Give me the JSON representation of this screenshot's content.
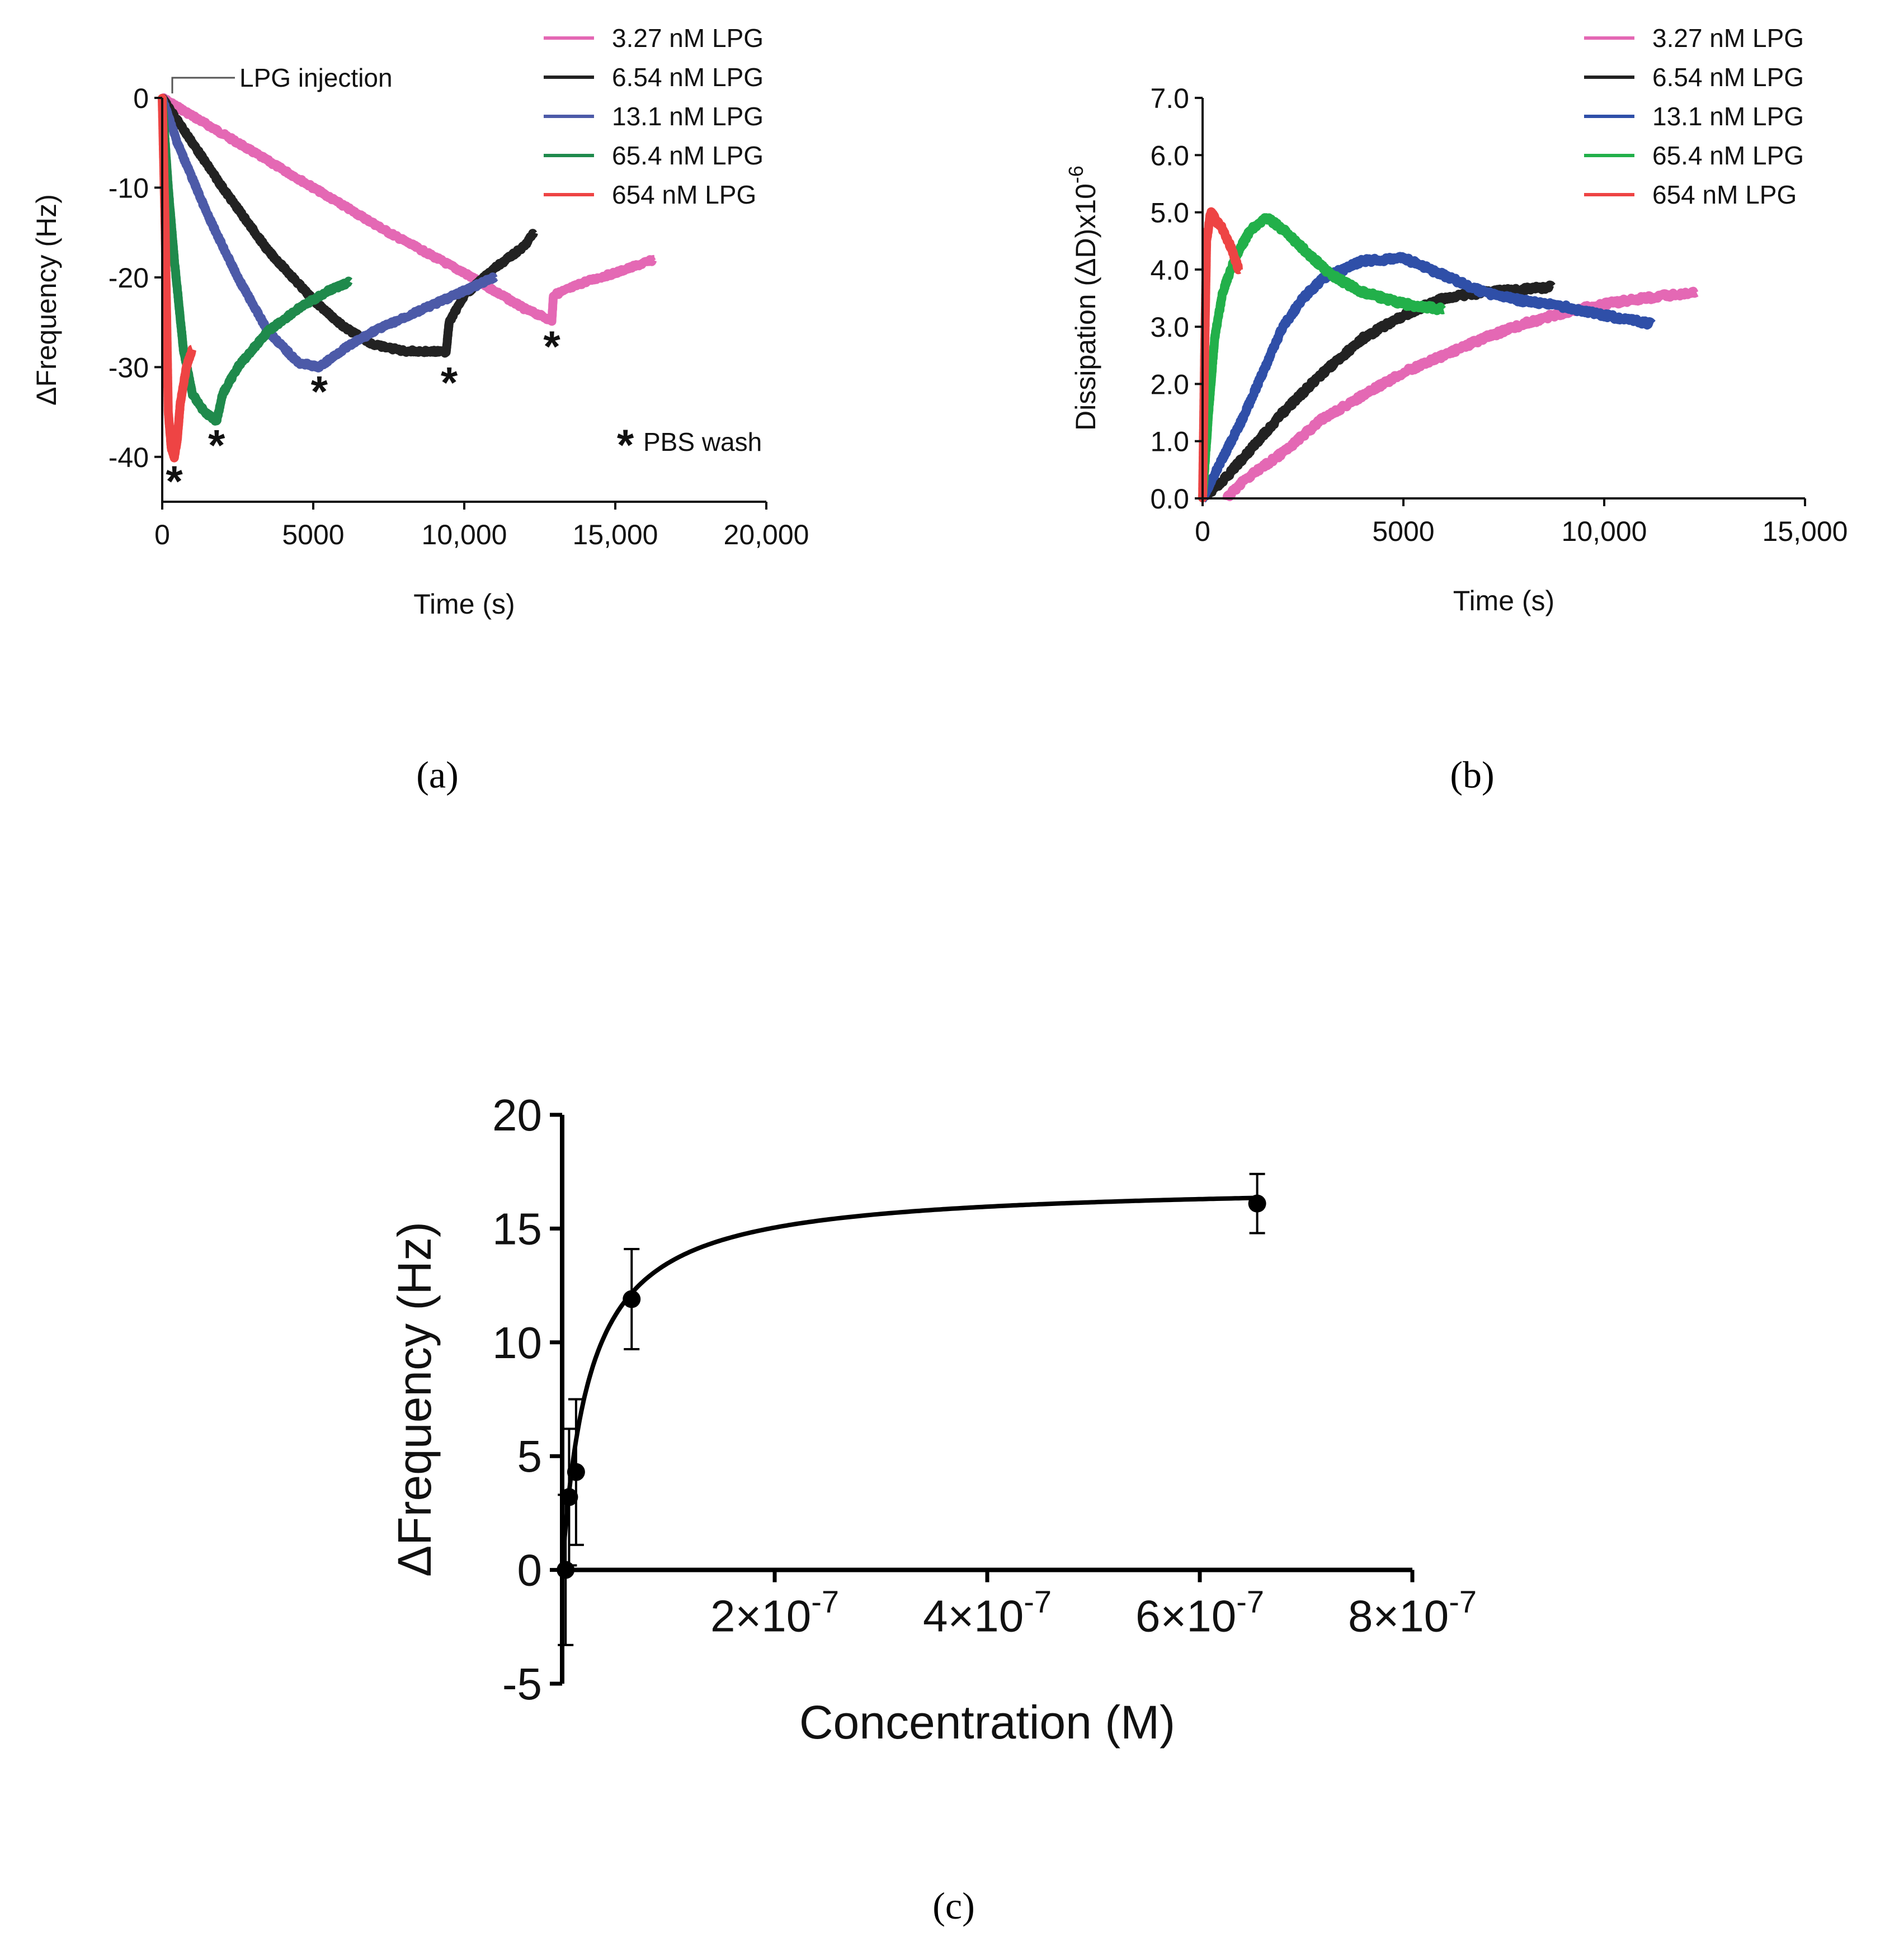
{
  "figure": {
    "captions": {
      "a": "(a)",
      "b": "(b)",
      "c": "(c)"
    }
  },
  "chart_data": [
    {
      "id": "a",
      "type": "line",
      "title": "",
      "xlabel": "Time (s)",
      "ylabel": "ΔFrequency (Hz)",
      "xlim": [
        0,
        20000
      ],
      "ylim": [
        -45,
        0
      ],
      "x_ticks": [
        0,
        5000,
        10000,
        15000,
        20000
      ],
      "x_tick_labels": [
        "0",
        "5000",
        "10,000",
        "15,000",
        "20,000"
      ],
      "y_ticks": [
        0,
        -10,
        -20,
        -30,
        -40
      ],
      "y_tick_labels": [
        "0",
        "-10",
        "-20",
        "-30",
        "-40"
      ],
      "grid": false,
      "legend_position": "top-right",
      "annotations": {
        "injection_label": "LPG injection",
        "wash_marker": "*",
        "wash_legend": "PBS wash"
      },
      "wash_points": [
        {
          "x": 400,
          "y": -42.5
        },
        {
          "x": 1800,
          "y": -38.5
        },
        {
          "x": 5200,
          "y": -32.5
        },
        {
          "x": 9500,
          "y": -31.5
        },
        {
          "x": 12900,
          "y": -27.5
        }
      ],
      "series": [
        {
          "name": "3.27 nM LPG",
          "color": "#e468b4",
          "points": [
            [
              0,
              0
            ],
            [
              1000,
              -2
            ],
            [
              2500,
              -5
            ],
            [
              5000,
              -10
            ],
            [
              7500,
              -15
            ],
            [
              10000,
              -19.5
            ],
            [
              12000,
              -23.5
            ],
            [
              12900,
              -24.8
            ],
            [
              12950,
              -22
            ],
            [
              14000,
              -20.5
            ],
            [
              15000,
              -19.5
            ],
            [
              16300,
              -18
            ]
          ]
        },
        {
          "name": "6.54 nM LPG",
          "color": "#222222",
          "points": [
            [
              0,
              0
            ],
            [
              1000,
              -5
            ],
            [
              2000,
              -10
            ],
            [
              3500,
              -17
            ],
            [
              5000,
              -22.5
            ],
            [
              6000,
              -25.5
            ],
            [
              7000,
              -27.5
            ],
            [
              8000,
              -28.2
            ],
            [
              9400,
              -28.3
            ],
            [
              9500,
              -25
            ],
            [
              10000,
              -22
            ],
            [
              11000,
              -19
            ],
            [
              12000,
              -16.5
            ],
            [
              12300,
              -15
            ]
          ]
        },
        {
          "name": "13.1 nM LPG",
          "color": "#4c5aa8",
          "points": [
            [
              0,
              0
            ],
            [
              500,
              -5
            ],
            [
              1500,
              -13
            ],
            [
              2500,
              -20
            ],
            [
              3500,
              -26
            ],
            [
              4500,
              -29.5
            ],
            [
              5200,
              -30
            ],
            [
              6000,
              -28
            ],
            [
              7000,
              -26
            ],
            [
              8000,
              -24.5
            ],
            [
              9000,
              -23
            ],
            [
              10000,
              -21.5
            ],
            [
              11000,
              -20
            ]
          ]
        },
        {
          "name": "65.4 nM LPG",
          "color": "#1f8a4c",
          "points": [
            [
              0,
              0
            ],
            [
              200,
              -10
            ],
            [
              400,
              -18
            ],
            [
              700,
              -28
            ],
            [
              1000,
              -33
            ],
            [
              1400,
              -35
            ],
            [
              1800,
              -36
            ],
            [
              2000,
              -33
            ],
            [
              2500,
              -30
            ],
            [
              3500,
              -26
            ],
            [
              4500,
              -23.5
            ],
            [
              5500,
              -21.5
            ],
            [
              6200,
              -20.5
            ]
          ]
        },
        {
          "name": "654  nM LPG",
          "color": "#ee4444",
          "points": [
            [
              0,
              0
            ],
            [
              100,
              -15
            ],
            [
              200,
              -35
            ],
            [
              300,
              -39
            ],
            [
              400,
              -40
            ],
            [
              500,
              -38
            ],
            [
              600,
              -34
            ],
            [
              800,
              -30
            ],
            [
              1000,
              -28
            ]
          ]
        }
      ]
    },
    {
      "id": "b",
      "type": "line",
      "title": "",
      "xlabel": "Time (s)",
      "ylabel": "Dissipation (ΔD)x10",
      "ylabel_superscript": "-6",
      "xlim": [
        0,
        15000
      ],
      "ylim": [
        0,
        7
      ],
      "x_ticks": [
        0,
        5000,
        10000,
        15000
      ],
      "x_tick_labels": [
        "0",
        "5000",
        "10,000",
        "15,000"
      ],
      "y_ticks": [
        0,
        1,
        2,
        3,
        4,
        5,
        6,
        7
      ],
      "y_tick_labels": [
        "0.0",
        "1.0",
        "2.0",
        "3.0",
        "4.0",
        "5.0",
        "6.0",
        "7.0"
      ],
      "grid": false,
      "legend_position": "top-right",
      "series": [
        {
          "name": "3.27 nM LPG",
          "color": "#e468b4",
          "points": [
            [
              600,
              0
            ],
            [
              1000,
              0.3
            ],
            [
              2000,
              0.8
            ],
            [
              3000,
              1.4
            ],
            [
              4000,
              1.8
            ],
            [
              5000,
              2.2
            ],
            [
              6000,
              2.5
            ],
            [
              7000,
              2.8
            ],
            [
              8000,
              3.05
            ],
            [
              9000,
              3.25
            ],
            [
              10000,
              3.4
            ],
            [
              11000,
              3.5
            ],
            [
              12300,
              3.6
            ]
          ]
        },
        {
          "name": "6.54 nM LPG",
          "color": "#222222",
          "points": [
            [
              0,
              0
            ],
            [
              500,
              0.3
            ],
            [
              1000,
              0.7
            ],
            [
              2000,
              1.5
            ],
            [
              3000,
              2.2
            ],
            [
              4000,
              2.8
            ],
            [
              5000,
              3.2
            ],
            [
              6000,
              3.5
            ],
            [
              7000,
              3.6
            ],
            [
              8000,
              3.65
            ],
            [
              8700,
              3.7
            ]
          ]
        },
        {
          "name": "13.1 nM LPG",
          "color": "#2f4fa8",
          "points": [
            [
              0,
              0
            ],
            [
              500,
              0.7
            ],
            [
              1000,
              1.4
            ],
            [
              1500,
              2.2
            ],
            [
              2000,
              3.0
            ],
            [
              2500,
              3.5
            ],
            [
              3000,
              3.85
            ],
            [
              4000,
              4.15
            ],
            [
              5000,
              4.2
            ],
            [
              6000,
              3.9
            ],
            [
              7000,
              3.6
            ],
            [
              8000,
              3.45
            ],
            [
              9000,
              3.35
            ],
            [
              10000,
              3.2
            ],
            [
              11200,
              3.05
            ]
          ]
        },
        {
          "name": "65.4 nM LPG",
          "color": "#22b04a",
          "points": [
            [
              0,
              0
            ],
            [
              150,
              1.5
            ],
            [
              300,
              2.8
            ],
            [
              500,
              3.6
            ],
            [
              800,
              4.2
            ],
            [
              1200,
              4.7
            ],
            [
              1600,
              4.9
            ],
            [
              2000,
              4.7
            ],
            [
              2600,
              4.3
            ],
            [
              3200,
              3.9
            ],
            [
              4000,
              3.6
            ],
            [
              5000,
              3.4
            ],
            [
              6000,
              3.3
            ]
          ]
        },
        {
          "name": "654  nM LPG",
          "color": "#ee4444",
          "points": [
            [
              0,
              0
            ],
            [
              50,
              2.5
            ],
            [
              100,
              4.5
            ],
            [
              200,
              5.0
            ],
            [
              300,
              4.9
            ],
            [
              500,
              4.7
            ],
            [
              700,
              4.4
            ],
            [
              900,
              4.0
            ]
          ]
        }
      ]
    },
    {
      "id": "c",
      "type": "scatter",
      "title": "",
      "xlabel": "Concentration (M)",
      "ylabel": "ΔFrequency (Hz)",
      "xlim": [
        0,
        8e-07
      ],
      "ylim": [
        -5,
        20
      ],
      "x_ticks": [
        2e-07,
        4e-07,
        6e-07,
        8e-07
      ],
      "x_tick_labels": [
        {
          "base": "2×10",
          "exp": "-7"
        },
        {
          "base": "4×10",
          "exp": "-7"
        },
        {
          "base": "6×10",
          "exp": "-7"
        },
        {
          "base": "8×10",
          "exp": "-7"
        }
      ],
      "y_ticks": [
        -5,
        0,
        5,
        10,
        15,
        20
      ],
      "y_tick_labels": [
        "-5",
        "0",
        "5",
        "10",
        "15",
        "20"
      ],
      "grid": false,
      "points": [
        {
          "x": 3.27e-09,
          "y": 0,
          "err": 3.3
        },
        {
          "x": 6.54e-09,
          "y": 3.2,
          "err": 3.0
        },
        {
          "x": 1.31e-08,
          "y": 4.3,
          "err": 3.2
        },
        {
          "x": 6.54e-08,
          "y": 11.9,
          "err": 2.2
        },
        {
          "x": 6.54e-07,
          "y": 16.1,
          "err": 1.3
        }
      ],
      "fit": {
        "model": "one-site binding",
        "Bmax": 17.0,
        "Kd": 2.6e-08
      }
    }
  ]
}
